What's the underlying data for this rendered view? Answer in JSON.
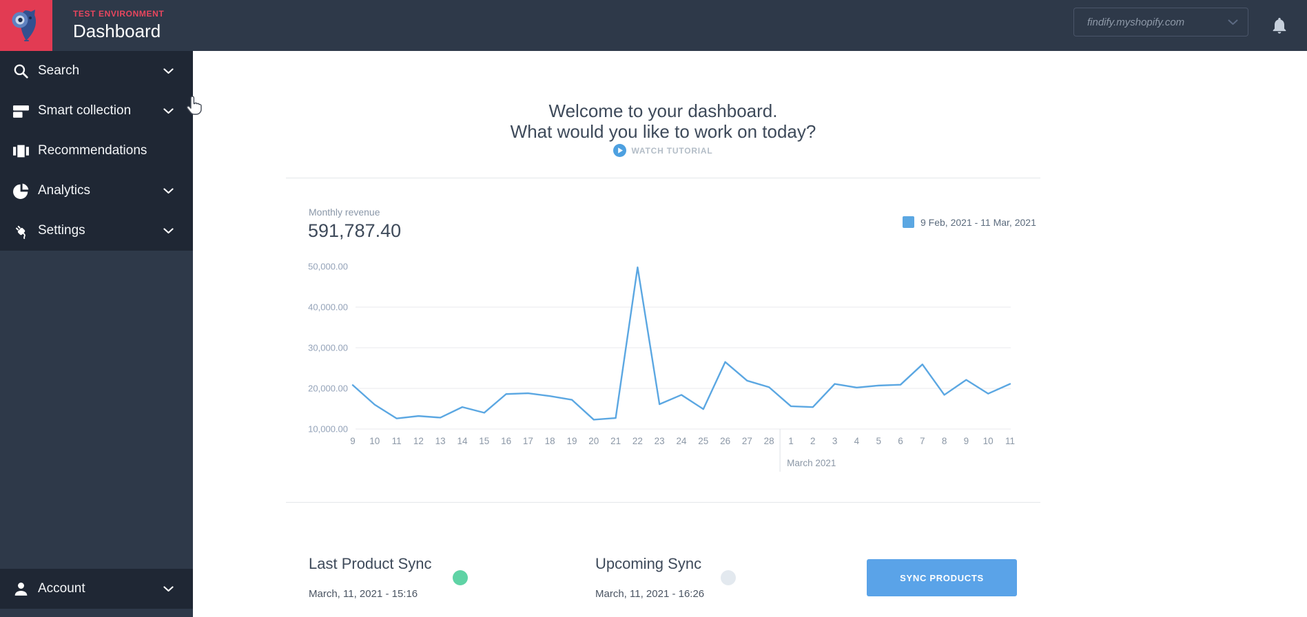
{
  "header": {
    "env_label": "TEST ENVIRONMENT",
    "title": "Dashboard",
    "store_selector": {
      "value": "findify.myshopify.com"
    },
    "icons": {
      "logo": "findify-owl-logo",
      "bell": "notifications-bell"
    }
  },
  "sidebar": {
    "items": [
      {
        "label": "Search",
        "icon": "search-icon",
        "expandable": true
      },
      {
        "label": "Smart collection",
        "icon": "smart-collection-icon",
        "expandable": true
      },
      {
        "label": "Recommendations",
        "icon": "recommendations-icon",
        "expandable": false
      },
      {
        "label": "Analytics",
        "icon": "analytics-pie-icon",
        "expandable": true
      },
      {
        "label": "Settings",
        "icon": "settings-plug-icon",
        "expandable": true
      }
    ],
    "account": {
      "label": "Account",
      "icon": "account-person-icon",
      "expandable": true
    }
  },
  "main": {
    "welcome_line1": "Welcome to your dashboard.",
    "welcome_line2": "What would you like to work on today?",
    "watch_tutorial_label": "WATCH TUTORIAL",
    "revenue": {
      "label": "Monthly revenue",
      "value": "591,787.40",
      "legend_label": "9 Feb, 2021 - 11 Mar, 2021"
    },
    "sync": {
      "last": {
        "title": "Last Product Sync",
        "timestamp": "March, 11, 2021 - 15:16",
        "status_color": "#5fd3a5"
      },
      "upcoming": {
        "title": "Upcoming Sync",
        "timestamp": "March, 11, 2021 - 16:26",
        "status_color": "#e3e9ef"
      },
      "button_label": "SYNC PRODUCTS"
    }
  },
  "chart_data": {
    "type": "line",
    "title": "Monthly revenue",
    "legend": [
      "9 Feb, 2021 - 11 Mar, 2021"
    ],
    "legend_position": "top-right",
    "x_tick_labels": [
      "9",
      "10",
      "11",
      "12",
      "13",
      "14",
      "15",
      "16",
      "17",
      "18",
      "19",
      "20",
      "21",
      "22",
      "23",
      "24",
      "25",
      "26",
      "27",
      "28",
      "1",
      "2",
      "3",
      "4",
      "5",
      "6",
      "7",
      "8",
      "9",
      "10",
      "11"
    ],
    "month_separator_after_index": 19,
    "month_label": "March 2021",
    "series": [
      {
        "name": "9 Feb, 2021 - 11 Mar, 2021",
        "values": [
          20800,
          16000,
          12600,
          13200,
          12800,
          15400,
          14000,
          18600,
          18800,
          18100,
          17200,
          12300,
          12700,
          49800,
          16100,
          18400,
          14900,
          26500,
          21900,
          20300,
          15600,
          15400,
          21100,
          20200,
          20700,
          20900,
          25900,
          18400,
          22100,
          18700,
          21100
        ]
      }
    ],
    "y_ticks": [
      10000,
      20000,
      30000,
      40000,
      50000
    ],
    "y_tick_labels": [
      "10,000.00",
      "20,000.00",
      "30,000.00",
      "40,000.00",
      "50,000.00"
    ],
    "ylim": [
      10000,
      50000
    ],
    "grid": "horizontal",
    "line_color": "#5ba7e2"
  },
  "colors": {
    "header_bg": "#2e3949",
    "sidebar_bg": "#1f2734",
    "sidebar_fill_bg": "#2e3949",
    "logo_bg": "#e23b53",
    "accent_blue": "#5aa3e8",
    "chart_line": "#5ba7e2",
    "success_green": "#5fd3a5",
    "idle_gray": "#e3e9ef",
    "heading_text": "#3e4a5a",
    "muted_text": "#8a97a8"
  }
}
